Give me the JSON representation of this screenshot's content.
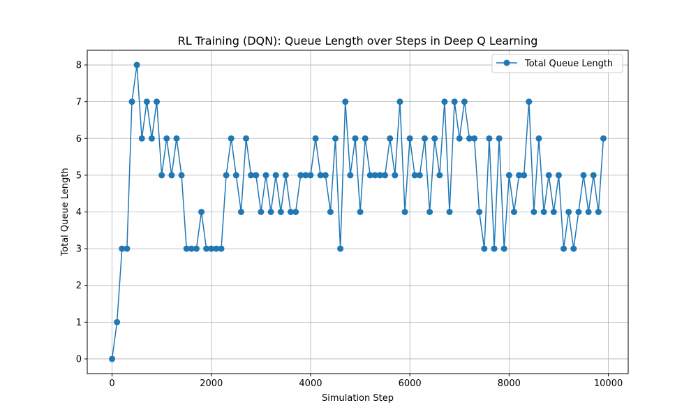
{
  "chart_data": {
    "type": "line",
    "title": "RL Training (DQN): Queue Length over Steps in Deep Q Learning",
    "xlabel": "Simulation Step",
    "ylabel": "Total Queue Length",
    "xlim": [
      -500,
      10400
    ],
    "ylim": [
      -0.4,
      8.4
    ],
    "xticks": [
      0,
      2000,
      4000,
      6000,
      8000,
      10000
    ],
    "yticks": [
      0,
      1,
      2,
      3,
      4,
      5,
      6,
      7,
      8
    ],
    "grid": true,
    "legend_position": "top-right",
    "series": [
      {
        "name": "Total Queue Length",
        "color": "#1f77b4",
        "marker": "circle",
        "x": [
          0,
          100,
          200,
          300,
          400,
          500,
          600,
          700,
          800,
          900,
          1000,
          1100,
          1200,
          1300,
          1400,
          1500,
          1600,
          1700,
          1800,
          1900,
          2000,
          2100,
          2200,
          2300,
          2400,
          2500,
          2600,
          2700,
          2800,
          2900,
          3000,
          3100,
          3200,
          3300,
          3400,
          3500,
          3600,
          3700,
          3800,
          3900,
          4000,
          4100,
          4200,
          4300,
          4400,
          4500,
          4600,
          4700,
          4800,
          4900,
          5000,
          5100,
          5200,
          5300,
          5400,
          5500,
          5600,
          5700,
          5800,
          5900,
          6000,
          6100,
          6200,
          6300,
          6400,
          6500,
          6600,
          6700,
          6800,
          6900,
          7000,
          7100,
          7200,
          7300,
          7400,
          7500,
          7600,
          7700,
          7800,
          7900,
          8000,
          8100,
          8200,
          8300,
          8400,
          8500,
          8600,
          8700,
          8800,
          8900,
          9000,
          9100,
          9200,
          9300,
          9400,
          9500,
          9600,
          9700,
          9800,
          9900
        ],
        "y": [
          0,
          1,
          3,
          3,
          7,
          8,
          6,
          7,
          6,
          7,
          5,
          6,
          5,
          6,
          5,
          3,
          3,
          3,
          4,
          3,
          3,
          3,
          3,
          5,
          6,
          5,
          4,
          6,
          5,
          5,
          4,
          5,
          4,
          5,
          4,
          5,
          4,
          4,
          5,
          5,
          5,
          6,
          5,
          5,
          4,
          6,
          3,
          7,
          5,
          6,
          4,
          6,
          5,
          5,
          5,
          5,
          6,
          5,
          7,
          4,
          6,
          5,
          5,
          6,
          4,
          6,
          5,
          7,
          4,
          7,
          6,
          7,
          6,
          6,
          4,
          3,
          6,
          3,
          6,
          3,
          5,
          4,
          5,
          5,
          7,
          4,
          6,
          4,
          5,
          4,
          5,
          3,
          4,
          3,
          4,
          5,
          4,
          5,
          4,
          6
        ]
      }
    ]
  }
}
